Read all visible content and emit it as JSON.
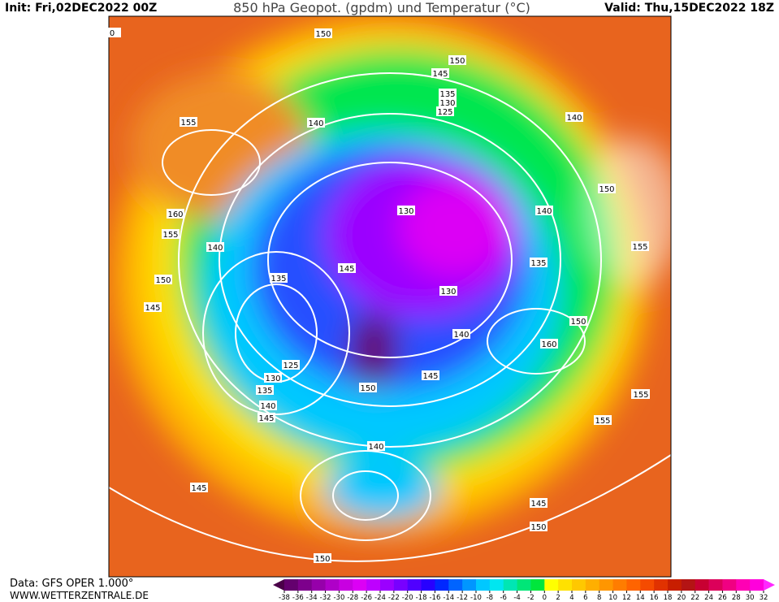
{
  "header": {
    "init": "Init: Fri,02DEC2022 00Z",
    "title": "850 hPa Geopot. (gpdm) und Temperatur (°C)",
    "valid": "Valid: Thu,15DEC2022 18Z"
  },
  "footer": {
    "source": "Data: GFS OPER 1.000°",
    "website": "WWW.WETTERZENTRALE.DE"
  },
  "colorbar": {
    "ticks": [
      -38,
      -36,
      -34,
      -32,
      -30,
      -28,
      -26,
      -24,
      -22,
      -20,
      -18,
      -16,
      -14,
      -12,
      -10,
      -8,
      -6,
      -4,
      -2,
      0,
      2,
      4,
      6,
      8,
      10,
      12,
      14,
      16,
      18,
      20,
      22,
      24,
      26,
      28,
      30,
      32
    ],
    "colors": [
      "#4a0048",
      "#64006e",
      "#7d008c",
      "#9600aa",
      "#af00c8",
      "#c800e1",
      "#dc00f5",
      "#be00ff",
      "#9b00ff",
      "#7800ff",
      "#5000ff",
      "#2800ff",
      "#0028ff",
      "#0064ff",
      "#0096ff",
      "#00c8ff",
      "#00e6f0",
      "#00e6b4",
      "#00e678",
      "#00e63c",
      "#ffff00",
      "#ffe100",
      "#ffc800",
      "#ffaf00",
      "#ff9600",
      "#ff7d00",
      "#ff6400",
      "#f54b00",
      "#e13200",
      "#c81e00",
      "#b41414",
      "#c80032",
      "#dc005a",
      "#f00082",
      "#ff00b4",
      "#ff00dc",
      "#ff28ff"
    ]
  },
  "contour_labels": [
    "150",
    "150",
    "145",
    "140",
    "135",
    "130",
    "125",
    "155",
    "140",
    "150",
    "160",
    "155",
    "140",
    "150",
    "145",
    "135",
    "130",
    "145",
    "150",
    "140",
    "145",
    "130",
    "125",
    "135",
    "140",
    "145",
    "150",
    "155",
    "140",
    "135",
    "130",
    "150",
    "160",
    "155",
    "155",
    "140",
    "145",
    "150",
    "145",
    "155",
    "0"
  ]
}
